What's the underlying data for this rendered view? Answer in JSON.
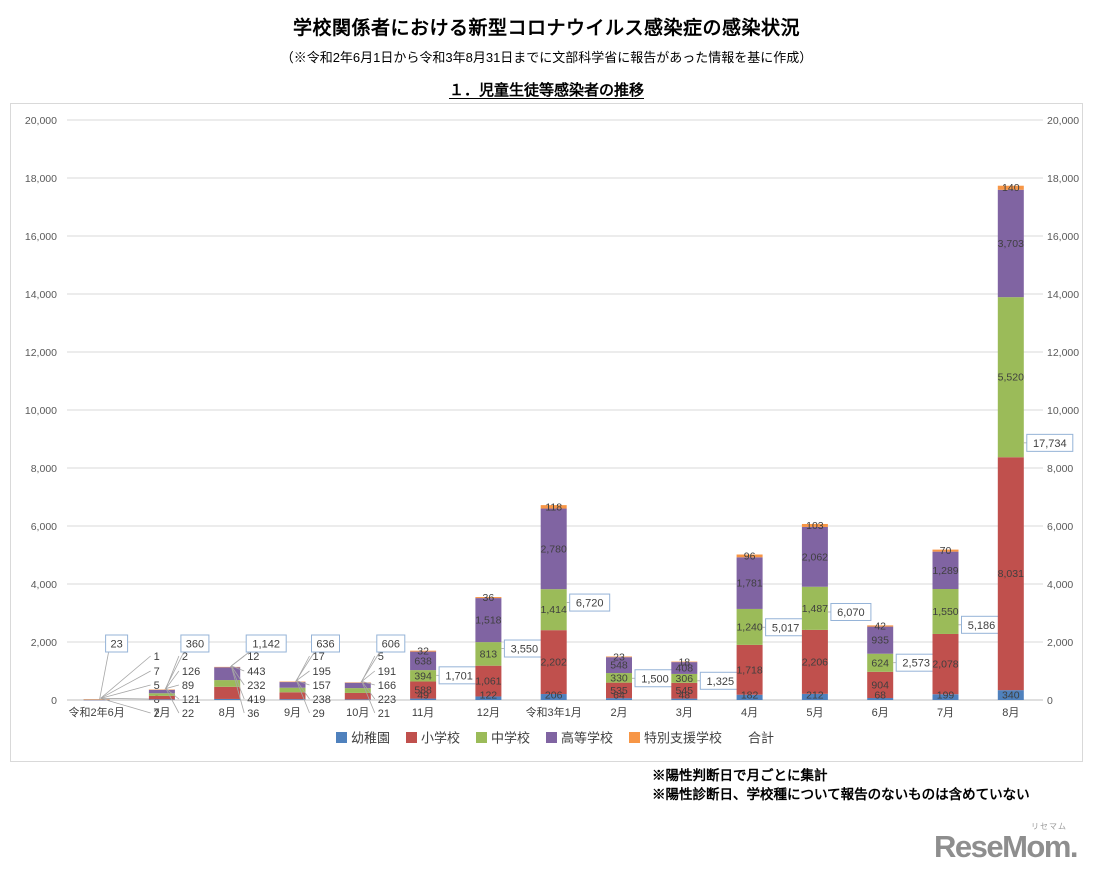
{
  "header": {
    "title": "学校関係者における新型コロナウイルス感染症の感染状況",
    "subtitle": "（※令和2年6月1日から令和3年8月31日までに文部科学省に報告があった情報を基に作成）",
    "section_title": "１．児童生徒等感染者の推移"
  },
  "chart_data": {
    "type": "bar",
    "stacked": true,
    "title": "１．児童生徒等感染者の推移",
    "categories": [
      "令和2年6月",
      "7月",
      "8月",
      "9月",
      "10月",
      "11月",
      "12月",
      "令和3年1月",
      "2月",
      "3月",
      "4月",
      "5月",
      "6月",
      "7月",
      "8月"
    ],
    "series": [
      {
        "name": "幼稚園",
        "color": "#4F81BD",
        "values": [
          2,
          22,
          36,
          29,
          21,
          49,
          122,
          206,
          64,
          48,
          182,
          212,
          68,
          199,
          340
        ]
      },
      {
        "name": "小学校",
        "color": "#C0504D",
        "values": [
          8,
          121,
          419,
          238,
          223,
          588,
          1061,
          2202,
          535,
          545,
          1718,
          2206,
          904,
          2078,
          8031
        ]
      },
      {
        "name": "中学校",
        "color": "#9BBB59",
        "values": [
          5,
          89,
          232,
          157,
          166,
          394,
          813,
          1414,
          330,
          306,
          1240,
          1487,
          624,
          1550,
          5520
        ]
      },
      {
        "name": "高等学校",
        "color": "#8064A2",
        "values": [
          7,
          126,
          443,
          195,
          191,
          638,
          1518,
          2780,
          548,
          408,
          1781,
          2062,
          935,
          1289,
          3703
        ]
      },
      {
        "name": "特別支援学校",
        "color": "#F79646",
        "values": [
          1,
          2,
          12,
          17,
          5,
          32,
          36,
          118,
          23,
          18,
          96,
          103,
          42,
          70,
          140
        ]
      }
    ],
    "totals": {
      "name": "合計",
      "values": [
        23,
        360,
        1142,
        636,
        606,
        1701,
        3550,
        6720,
        1500,
        1325,
        5017,
        6070,
        2573,
        5186,
        17734
      ]
    },
    "xlabel": "",
    "ylabel": "",
    "ylim": [
      0,
      20000
    ],
    "ytick_step": 2000,
    "grid": true,
    "legend_position": "bottom",
    "style": {
      "callout_border": "#95B3D7",
      "gridline_color": "#D9D9D9",
      "axis_label_color": "#595959",
      "value_label_color": "#3F3F3F",
      "leader_line_color": "#A6A6A6"
    }
  },
  "footnotes": [
    "※陽性判断日で月ごとに集計",
    "※陽性診断日、学校種について報告のないものは含めていない"
  ],
  "logo": {
    "text": "ReseMom.",
    "ruby": "リセマム"
  }
}
